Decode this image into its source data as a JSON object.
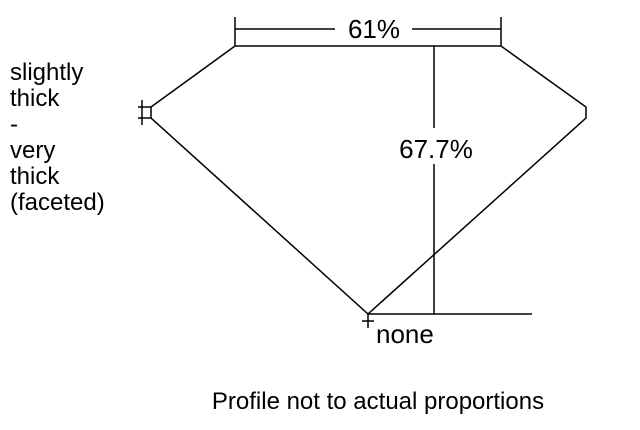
{
  "diagram": {
    "table_percent": "61%",
    "depth_percent": "67.7%",
    "girdle_lines": [
      "slightly",
      "thick",
      "-",
      "very",
      "thick",
      "(faceted)"
    ],
    "culet": "none",
    "caption": "Profile not to actual proportions"
  }
}
